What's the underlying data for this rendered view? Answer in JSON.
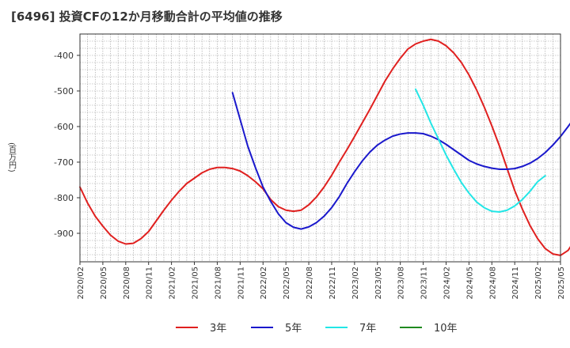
{
  "chart_data": {
    "type": "line",
    "title": "[6496]  投資CFの12か月移動合計の平均値の推移",
    "ylabel": "(百万円)",
    "xlabel": "",
    "ylim": [
      -980,
      -340
    ],
    "y_ticks": [
      -400,
      -500,
      -600,
      -700,
      -800,
      -900
    ],
    "x_tick_labels": [
      "2020/02",
      "2020/05",
      "2020/08",
      "2020/11",
      "2021/02",
      "2021/05",
      "2021/08",
      "2021/11",
      "2022/02",
      "2022/05",
      "2022/08",
      "2022/11",
      "2023/02",
      "2023/05",
      "2023/08",
      "2023/11",
      "2024/02",
      "2024/05",
      "2024/08",
      "2024/11",
      "2025/02",
      "2025/05"
    ],
    "grid": true,
    "legend_position": "bottom",
    "series": [
      {
        "name": "3年",
        "color": "#e0201f",
        "start": "2020/02",
        "values": [
          -770,
          -815,
          -852,
          -880,
          -905,
          -922,
          -930,
          -928,
          -915,
          -895,
          -865,
          -835,
          -807,
          -782,
          -760,
          -745,
          -730,
          -720,
          -715,
          -715,
          -718,
          -725,
          -738,
          -755,
          -775,
          -805,
          -825,
          -835,
          -838,
          -835,
          -820,
          -798,
          -770,
          -737,
          -700,
          -665,
          -628,
          -590,
          -552,
          -512,
          -472,
          -438,
          -408,
          -382,
          -368,
          -360,
          -355,
          -360,
          -373,
          -393,
          -420,
          -455,
          -497,
          -545,
          -598,
          -655,
          -718,
          -780,
          -832,
          -878,
          -915,
          -943,
          -958,
          -962,
          -948,
          -915,
          -870,
          -810,
          -730,
          -620,
          -470
        ]
      },
      {
        "name": "5年",
        "color": "#1a18cc",
        "start": "2021/10",
        "values": [
          -505,
          -580,
          -655,
          -715,
          -770,
          -810,
          -845,
          -870,
          -883,
          -888,
          -882,
          -870,
          -852,
          -828,
          -797,
          -760,
          -727,
          -697,
          -672,
          -652,
          -638,
          -627,
          -621,
          -618,
          -618,
          -620,
          -627,
          -637,
          -650,
          -665,
          -680,
          -695,
          -705,
          -712,
          -717,
          -720,
          -720,
          -718,
          -712,
          -703,
          -690,
          -673,
          -652,
          -628,
          -600,
          -570,
          -555
        ]
      },
      {
        "name": "7年",
        "color": "#22e6e6",
        "start": "2023/10",
        "values": [
          -495,
          -540,
          -590,
          -635,
          -680,
          -720,
          -757,
          -787,
          -812,
          -828,
          -838,
          -840,
          -835,
          -823,
          -805,
          -782,
          -755,
          -738
        ]
      },
      {
        "name": "10年",
        "color": "#1f8a1f",
        "start": "2025/05",
        "values": []
      }
    ]
  }
}
